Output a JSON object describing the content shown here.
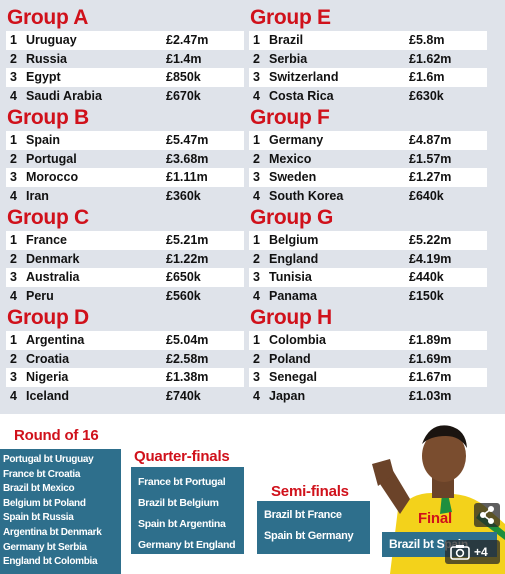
{
  "groups": [
    {
      "title": "Group A",
      "rows": [
        {
          "rank": "1",
          "team": "Uruguay",
          "prize": "£2.47m"
        },
        {
          "rank": "2",
          "team": "Russia",
          "prize": "£1.4m"
        },
        {
          "rank": "3",
          "team": "Egypt",
          "prize": "£850k"
        },
        {
          "rank": "4",
          "team": "Saudi Arabia",
          "prize": "£670k"
        }
      ]
    },
    {
      "title": "Group B",
      "rows": [
        {
          "rank": "1",
          "team": "Spain",
          "prize": "£5.47m"
        },
        {
          "rank": "2",
          "team": "Portugal",
          "prize": "£3.68m"
        },
        {
          "rank": "3",
          "team": "Morocco",
          "prize": "£1.11m"
        },
        {
          "rank": "4",
          "team": "Iran",
          "prize": "£360k"
        }
      ]
    },
    {
      "title": "Group C",
      "rows": [
        {
          "rank": "1",
          "team": "France",
          "prize": "£5.21m"
        },
        {
          "rank": "2",
          "team": "Denmark",
          "prize": "£1.22m"
        },
        {
          "rank": "3",
          "team": "Australia",
          "prize": "£650k"
        },
        {
          "rank": "4",
          "team": "Peru",
          "prize": "£560k"
        }
      ]
    },
    {
      "title": "Group D",
      "rows": [
        {
          "rank": "1",
          "team": "Argentina",
          "prize": "£5.04m"
        },
        {
          "rank": "2",
          "team": "Croatia",
          "prize": "£2.58m"
        },
        {
          "rank": "3",
          "team": "Nigeria",
          "prize": "£1.38m"
        },
        {
          "rank": "4",
          "team": "Iceland",
          "prize": "£740k"
        }
      ]
    },
    {
      "title": "Group E",
      "rows": [
        {
          "rank": "1",
          "team": "Brazil",
          "prize": "£5.8m"
        },
        {
          "rank": "2",
          "team": "Serbia",
          "prize": "£1.62m"
        },
        {
          "rank": "3",
          "team": "Switzerland",
          "prize": "£1.6m"
        },
        {
          "rank": "4",
          "team": "Costa Rica",
          "prize": "£630k"
        }
      ]
    },
    {
      "title": "Group F",
      "rows": [
        {
          "rank": "1",
          "team": "Germany",
          "prize": "£4.87m"
        },
        {
          "rank": "2",
          "team": "Mexico",
          "prize": "£1.57m"
        },
        {
          "rank": "3",
          "team": "Sweden",
          "prize": "£1.27m"
        },
        {
          "rank": "4",
          "team": "South Korea",
          "prize": "£640k"
        }
      ]
    },
    {
      "title": "Group G",
      "rows": [
        {
          "rank": "1",
          "team": "Belgium",
          "prize": "£5.22m"
        },
        {
          "rank": "2",
          "team": "England",
          "prize": "£4.19m"
        },
        {
          "rank": "3",
          "team": "Tunisia",
          "prize": "£440k"
        },
        {
          "rank": "4",
          "team": "Panama",
          "prize": "£150k"
        }
      ]
    },
    {
      "title": "Group H",
      "rows": [
        {
          "rank": "1",
          "team": "Colombia",
          "prize": "£1.89m"
        },
        {
          "rank": "2",
          "team": "Poland",
          "prize": "£1.69m"
        },
        {
          "rank": "3",
          "team": "Senegal",
          "prize": "£1.67m"
        },
        {
          "rank": "4",
          "team": "Japan",
          "prize": "£1.03m"
        }
      ]
    }
  ],
  "knockout": {
    "round16": {
      "title": "Round of 16",
      "matches": [
        "Portugal bt Uruguay",
        "France bt Croatia",
        "Brazil bt Mexico",
        "Belgium bt Poland",
        "Spain bt Russia",
        "Argentina bt Denmark",
        "Germany bt Serbia",
        "England bt Colombia"
      ]
    },
    "quarterfinals": {
      "title": "Quarter-finals",
      "matches": [
        "France bt Portugal",
        "Brazil bt Belgium",
        "Spain bt Argentina",
        "Germany bt England"
      ]
    },
    "semifinals": {
      "title": "Semi-finals",
      "matches": [
        "Brazil bt France",
        "Spain bt Germany"
      ]
    },
    "final": {
      "title": "Final",
      "matches": [
        "Brazil bt Spain"
      ]
    }
  },
  "overlay": {
    "share_icon": "share-icon",
    "camera_icon": "camera-icon",
    "photo_count": "+4"
  },
  "colors": {
    "accent_red": "#d0111b",
    "box_blue": "#2e6f8c",
    "panel_grey": "#dfe3ea"
  }
}
